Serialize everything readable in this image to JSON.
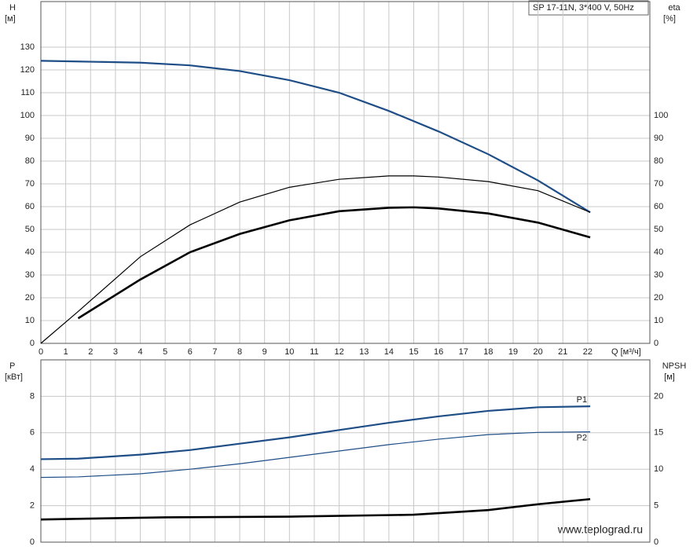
{
  "title": "SP 17-11N, 3*400 V, 50Hz",
  "watermark": "www.teplograd.ru",
  "chart_data": [
    {
      "type": "line",
      "x_label": "Q [м³/ч]",
      "y_label": "H",
      "y_unit": "[м]",
      "y2_label": "eta",
      "y2_unit": "[%]",
      "xlim": [
        0,
        24.5
      ],
      "xticks": [
        0,
        1,
        2,
        3,
        4,
        5,
        6,
        7,
        8,
        9,
        10,
        11,
        12,
        13,
        14,
        15,
        16,
        17,
        18,
        19,
        20,
        21,
        22
      ],
      "ylim": [
        0,
        150
      ],
      "yticks": [
        0,
        10,
        20,
        30,
        40,
        50,
        60,
        70,
        80,
        90,
        100,
        110,
        120,
        130
      ],
      "y2lim": [
        0,
        150
      ],
      "y2ticks": [
        0,
        10,
        20,
        30,
        40,
        50,
        60,
        70,
        80,
        90,
        100
      ],
      "grid": true,
      "series": [
        {
          "color": "#1f4e87",
          "linewidth": 2.2,
          "x": [
            0,
            1.5,
            4,
            6,
            8,
            10,
            12,
            14,
            16,
            18,
            20,
            22.1
          ],
          "values": [
            124,
            123.7,
            123.2,
            122,
            119.5,
            115.5,
            110,
            102,
            93,
            83,
            71.5,
            57.5
          ]
        },
        {
          "color": "#000000",
          "linewidth": 1.2,
          "axis": "y2",
          "x": [
            0,
            1.5,
            4,
            6,
            8,
            10,
            12,
            14,
            15,
            16,
            18,
            20,
            22.1
          ],
          "values": [
            0,
            14,
            38,
            52,
            62,
            68.5,
            72,
            73.5,
            73.5,
            73,
            71,
            67,
            57.5
          ]
        },
        {
          "color": "#000000",
          "linewidth": 2.6,
          "axis": "y2",
          "x": [
            1.5,
            4,
            6,
            8,
            10,
            12,
            14,
            15,
            16,
            18,
            20,
            22.1
          ],
          "values": [
            11,
            28,
            40,
            48,
            54,
            58,
            59.5,
            59.7,
            59.2,
            57,
            53,
            46.5
          ]
        }
      ]
    },
    {
      "type": "line",
      "y_label": "P",
      "y_unit": "[кВт]",
      "y2_label": "NPSH",
      "y2_unit": "[м]",
      "xlim": [
        0,
        24.5
      ],
      "xticks": [
        0,
        1,
        2,
        3,
        4,
        5,
        6,
        7,
        8,
        9,
        10,
        11,
        12,
        13,
        14,
        15,
        16,
        17,
        18,
        19,
        20,
        21,
        22
      ],
      "ylim": [
        0,
        10
      ],
      "yticks": [
        0,
        2,
        4,
        6,
        8
      ],
      "y2lim": [
        0,
        25
      ],
      "y2ticks": [
        0,
        5,
        10,
        15,
        20
      ],
      "grid": true,
      "series": [
        {
          "name": "P1",
          "color": "#1f4e87",
          "linewidth": 2.2,
          "x": [
            0,
            1.5,
            4,
            6,
            8,
            10,
            12,
            14,
            16,
            18,
            20,
            22.1
          ],
          "values": [
            4.55,
            4.58,
            4.8,
            5.05,
            5.4,
            5.75,
            6.15,
            6.55,
            6.9,
            7.2,
            7.4,
            7.45
          ]
        },
        {
          "name": "P2",
          "color": "#1f4e87",
          "linewidth": 1.2,
          "x": [
            0,
            1.5,
            4,
            6,
            8,
            10,
            12,
            14,
            16,
            18,
            20,
            22.1
          ],
          "values": [
            3.55,
            3.58,
            3.75,
            4.0,
            4.3,
            4.65,
            5.0,
            5.35,
            5.65,
            5.9,
            6.02,
            6.05
          ]
        },
        {
          "color": "#000000",
          "linewidth": 2.6,
          "axis": "y2",
          "x": [
            0,
            1.5,
            5,
            10,
            15,
            18,
            20,
            22.1
          ],
          "values": [
            3.1,
            3.2,
            3.4,
            3.5,
            3.76,
            4.4,
            5.2,
            5.9
          ]
        }
      ]
    }
  ]
}
